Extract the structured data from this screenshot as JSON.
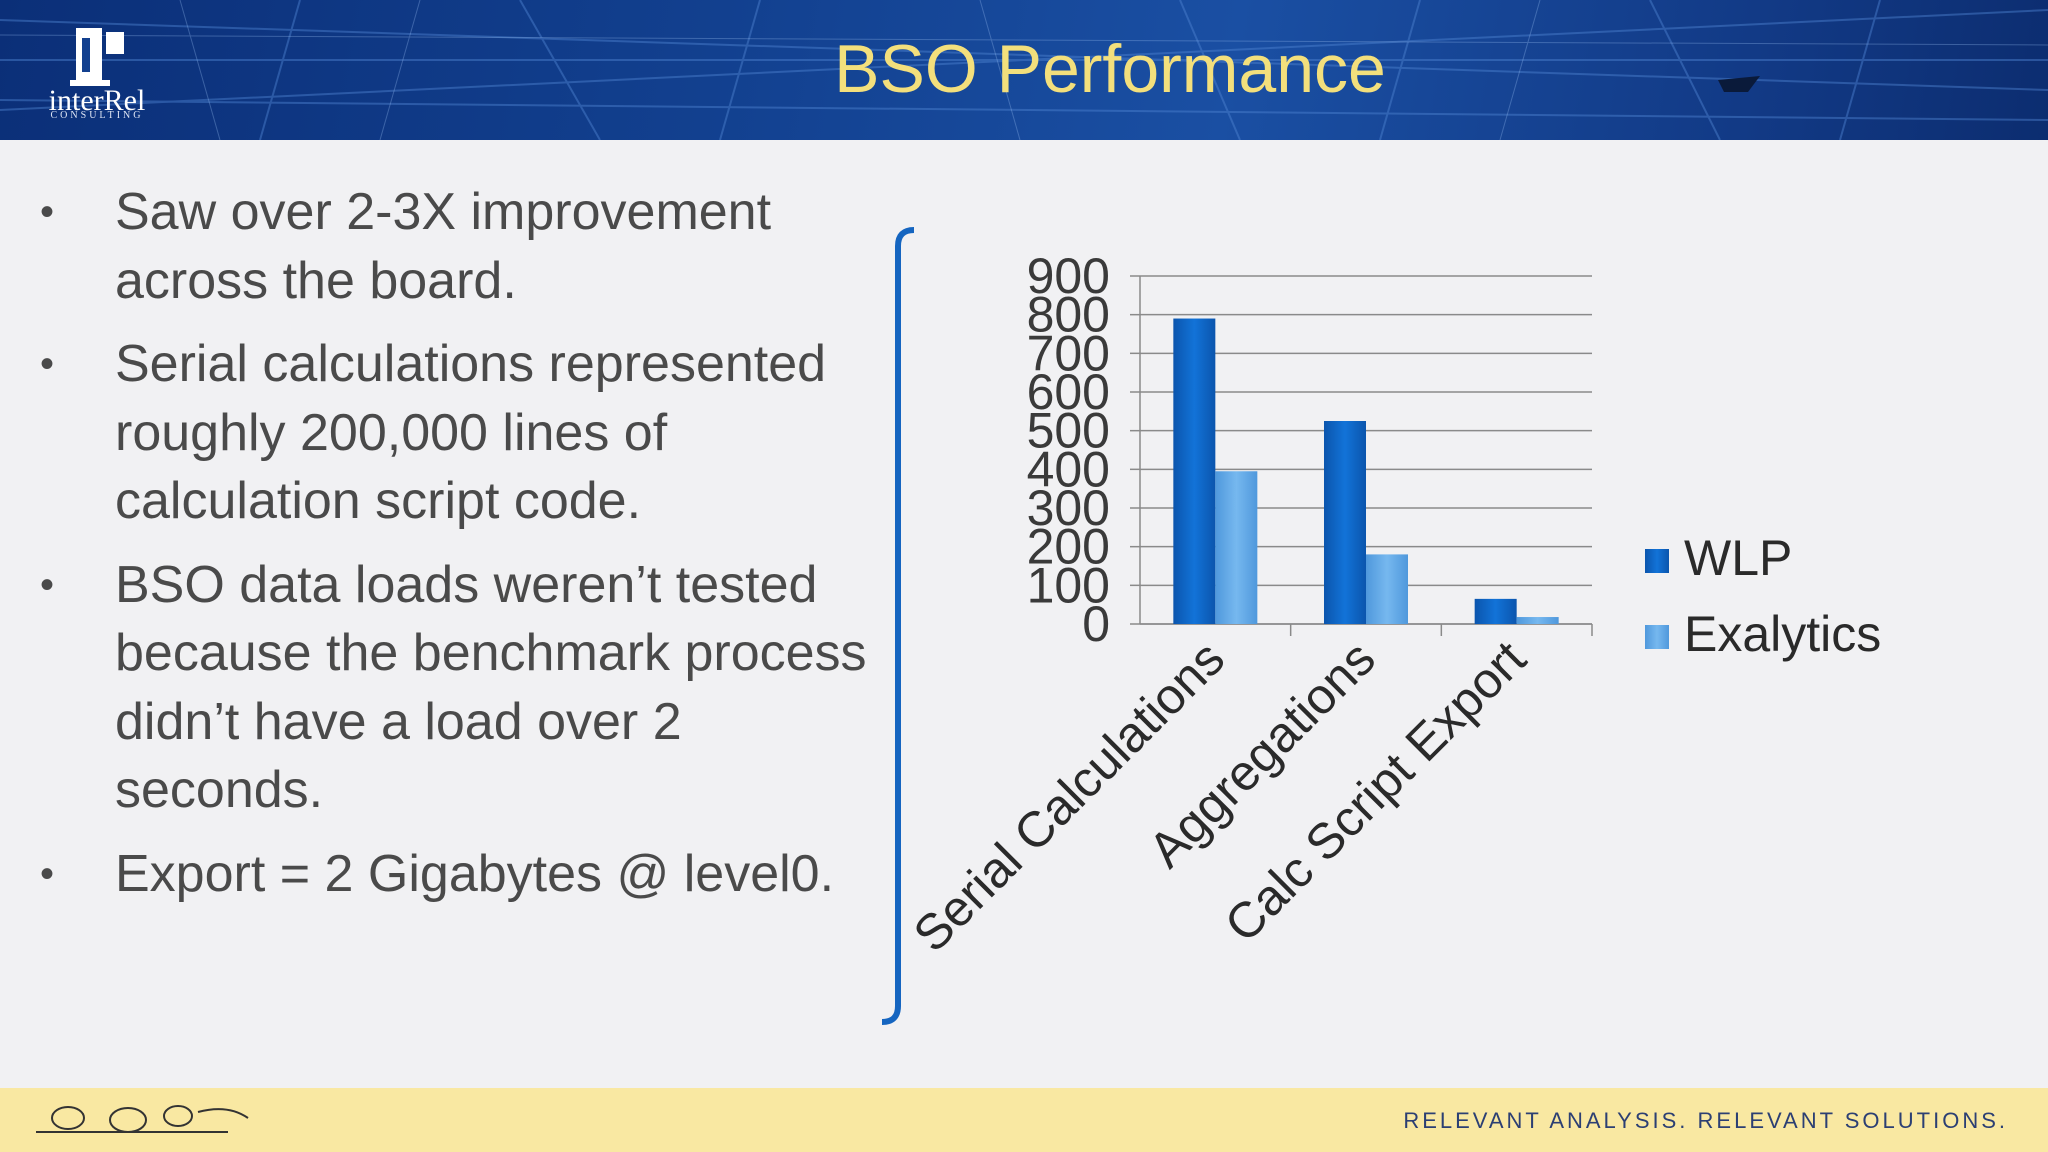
{
  "header": {
    "title": "BSO Performance",
    "logo_text": "interRel",
    "logo_sub": "CONSULTING"
  },
  "bullets": [
    "Saw over 2-3X improvement across the board.",
    "Serial calculations represented roughly 200,000 lines of calculation script code.",
    "BSO data loads weren’t tested because the benchmark process didn’t have a load over 2 seconds.",
    "Export = 2 Gigabytes @ level0."
  ],
  "bullet_symbol": "•",
  "footer": {
    "tagline": "RELEVANT ANALYSIS. RELEVANT SOLUTIONS."
  },
  "colors": {
    "header_blue": "#12408f",
    "title_yellow": "#f3df7c",
    "footer_yellow": "#f9e8a2",
    "wlp": "#0a63c6",
    "exalytics": "#5fa8e6"
  },
  "chart_data": {
    "type": "bar",
    "categories": [
      "Serial Calculations",
      "Aggregations",
      "Calc Script Export"
    ],
    "series": [
      {
        "name": "WLP",
        "values": [
          790,
          525,
          65
        ]
      },
      {
        "name": "Exalytics",
        "values": [
          395,
          180,
          18
        ]
      }
    ],
    "yticks": [
      0,
      100,
      200,
      300,
      400,
      500,
      600,
      700,
      800,
      900
    ],
    "ylim": [
      0,
      900
    ],
    "grid": true,
    "legend": "right"
  }
}
